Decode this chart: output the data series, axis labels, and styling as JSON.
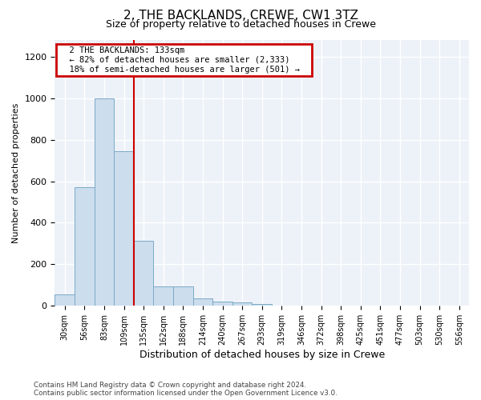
{
  "title": "2, THE BACKLANDS, CREWE, CW1 3TZ",
  "subtitle": "Size of property relative to detached houses in Crewe",
  "xlabel": "Distribution of detached houses by size in Crewe",
  "ylabel": "Number of detached properties",
  "categories": [
    "30sqm",
    "56sqm",
    "83sqm",
    "109sqm",
    "135sqm",
    "162sqm",
    "188sqm",
    "214sqm",
    "240sqm",
    "267sqm",
    "293sqm",
    "319sqm",
    "346sqm",
    "372sqm",
    "398sqm",
    "425sqm",
    "451sqm",
    "477sqm",
    "503sqm",
    "530sqm",
    "556sqm"
  ],
  "values": [
    57,
    570,
    1000,
    745,
    315,
    95,
    95,
    35,
    20,
    15,
    8,
    0,
    0,
    0,
    0,
    0,
    0,
    0,
    0,
    0,
    0
  ],
  "bar_color": "#ccdded",
  "bar_edge_color": "#7aaac8",
  "vline_x": 3.5,
  "property_line_label": "2 THE BACKLANDS: 133sqm",
  "annotation_smaller": "← 82% of detached houses are smaller (2,333)",
  "annotation_larger": "18% of semi-detached houses are larger (501) →",
  "annotation_box_facecolor": "#ffffff",
  "annotation_box_edgecolor": "#cc0000",
  "vline_color": "#cc0000",
  "ylim": [
    0,
    1280
  ],
  "yticks": [
    0,
    200,
    400,
    600,
    800,
    1000,
    1200
  ],
  "bg_color": "#ffffff",
  "footer_line1": "Contains HM Land Registry data © Crown copyright and database right 2024.",
  "footer_line2": "Contains public sector information licensed under the Open Government Licence v3.0."
}
